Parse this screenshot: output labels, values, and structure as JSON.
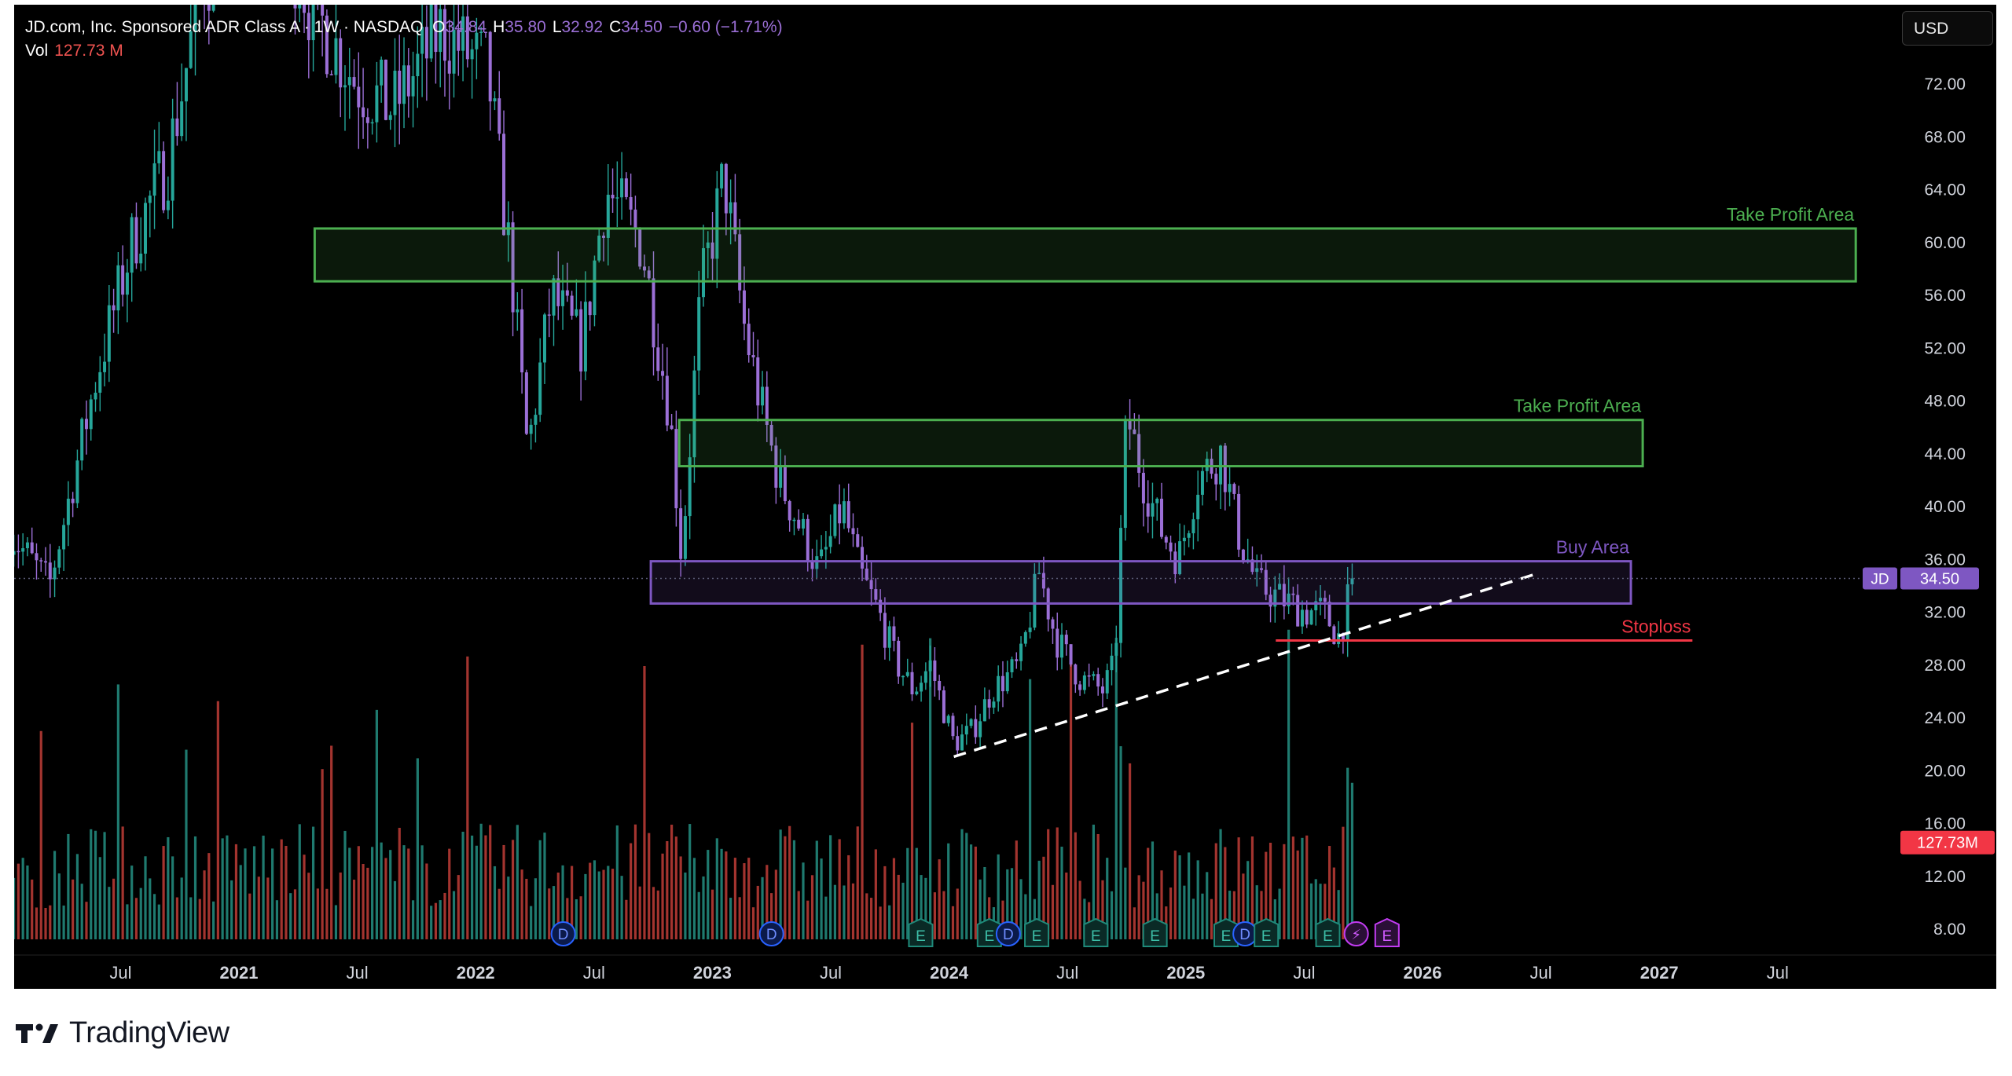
{
  "header": {
    "title": "JD.com, Inc. Sponsored ADR Class A · 1W · NASDAQ",
    "open_label": "O",
    "open": "34.84",
    "high_label": "H",
    "high": "35.80",
    "low_label": "L",
    "low": "32.92",
    "close_label": "C",
    "close": "34.50",
    "change": "−0.60 (−1.71%)",
    "vol_label": "Vol",
    "vol_value": "127.73 M"
  },
  "currency": "USD",
  "brand": {
    "name": "TradingView",
    "icon": "tradingview-logo-icon"
  },
  "colors": {
    "background": "#000000",
    "up": "#26a69a",
    "down": "#9b6fd6",
    "vol_up": "#1f7a6f",
    "vol_down": "#a3342f",
    "take_profit": "#4caf50",
    "buy_area": "#7e57c2",
    "stoploss": "#f23645"
  },
  "chart_data": {
    "type": "candlestick",
    "symbol": "JD",
    "last_price": "34.50",
    "last_volume": "127.73M",
    "price_axis_ticks": [
      "72.00",
      "68.00",
      "64.00",
      "60.00",
      "56.00",
      "52.00",
      "48.00",
      "44.00",
      "40.00",
      "36.00",
      "32.00",
      "28.00",
      "24.00",
      "20.00",
      "16.00",
      "12.00",
      "8.00"
    ],
    "time_axis_ticks": [
      {
        "label": "Jul",
        "date": 2020.5,
        "bold": false
      },
      {
        "label": "2021",
        "date": 2021.0,
        "bold": true
      },
      {
        "label": "Jul",
        "date": 2021.5,
        "bold": false
      },
      {
        "label": "2022",
        "date": 2022.0,
        "bold": true
      },
      {
        "label": "Jul",
        "date": 2022.5,
        "bold": false
      },
      {
        "label": "2023",
        "date": 2023.0,
        "bold": true
      },
      {
        "label": "Jul",
        "date": 2023.5,
        "bold": false
      },
      {
        "label": "2024",
        "date": 2024.0,
        "bold": true
      },
      {
        "label": "Jul",
        "date": 2024.5,
        "bold": false
      },
      {
        "label": "2025",
        "date": 2025.0,
        "bold": true
      },
      {
        "label": "Jul",
        "date": 2025.5,
        "bold": false
      },
      {
        "label": "2026",
        "date": 2026.0,
        "bold": true
      },
      {
        "label": "Jul",
        "date": 2026.5,
        "bold": false
      },
      {
        "label": "2027",
        "date": 2027.0,
        "bold": true
      },
      {
        "label": "Jul",
        "date": 2027.5,
        "bold": false
      }
    ],
    "price_path": [
      [
        2020.03,
        38
      ],
      [
        2020.2,
        34
      ],
      [
        2020.4,
        50
      ],
      [
        2020.55,
        60
      ],
      [
        2020.7,
        66
      ],
      [
        2020.85,
        80
      ],
      [
        2021.1,
        88
      ],
      [
        2021.3,
        78
      ],
      [
        2021.5,
        72
      ],
      [
        2021.65,
        70
      ],
      [
        2021.85,
        76
      ],
      [
        2022.05,
        73
      ],
      [
        2022.15,
        58
      ],
      [
        2022.22,
        44
      ],
      [
        2022.32,
        56
      ],
      [
        2022.45,
        52
      ],
      [
        2022.55,
        64
      ],
      [
        2022.7,
        60
      ],
      [
        2022.82,
        47
      ],
      [
        2022.87,
        36
      ],
      [
        2022.95,
        56
      ],
      [
        2023.05,
        65
      ],
      [
        2023.13,
        54
      ],
      [
        2023.2,
        48
      ],
      [
        2023.28,
        42
      ],
      [
        2023.38,
        38
      ],
      [
        2023.45,
        35
      ],
      [
        2023.55,
        40
      ],
      [
        2023.62,
        35
      ],
      [
        2023.7,
        32
      ],
      [
        2023.78,
        28
      ],
      [
        2023.85,
        26
      ],
      [
        2023.92,
        28
      ],
      [
        2024.02,
        22
      ],
      [
        2024.1,
        23
      ],
      [
        2024.18,
        26
      ],
      [
        2024.3,
        28
      ],
      [
        2024.38,
        35
      ],
      [
        2024.45,
        30
      ],
      [
        2024.55,
        27
      ],
      [
        2024.65,
        26
      ],
      [
        2024.7,
        28
      ],
      [
        2024.75,
        47
      ],
      [
        2024.82,
        42
      ],
      [
        2024.9,
        38
      ],
      [
        2024.97,
        36
      ],
      [
        2025.05,
        42
      ],
      [
        2025.15,
        44
      ],
      [
        2025.22,
        38
      ],
      [
        2025.3,
        34
      ],
      [
        2025.4,
        33
      ],
      [
        2025.5,
        32
      ],
      [
        2025.58,
        32
      ],
      [
        2025.65,
        30
      ],
      [
        2025.7,
        34
      ],
      [
        2025.72,
        34.5
      ]
    ],
    "volume_axis_max_millions": 250,
    "annotations": [
      {
        "type": "rectangle",
        "label": "Take Profit Area",
        "top": 61.0,
        "bottom": 57.0,
        "x_start": 2021.32,
        "x_end": 2027.83
      },
      {
        "type": "rectangle",
        "label": "Take Profit Area",
        "top": 46.5,
        "bottom": 43.0,
        "x_start": 2022.86,
        "x_end": 2026.93
      },
      {
        "type": "rectangle",
        "label": "Buy Area",
        "top": 35.8,
        "bottom": 32.6,
        "x_start": 2022.74,
        "x_end": 2026.88
      },
      {
        "type": "horizontal_segment",
        "label": "Stoploss",
        "price": 29.8,
        "x_start": 2025.38,
        "x_end": 2027.14
      },
      {
        "type": "trendline",
        "style": "dashed",
        "points": [
          [
            2024.02,
            21.0
          ],
          [
            2026.49,
            34.9
          ]
        ]
      }
    ],
    "events": [
      {
        "type": "D",
        "date": 2022.37
      },
      {
        "type": "D",
        "date": 2023.25
      },
      {
        "type": "E",
        "date": 2023.88
      },
      {
        "type": "E",
        "date": 2024.17
      },
      {
        "type": "D",
        "date": 2024.25
      },
      {
        "type": "E",
        "date": 2024.37
      },
      {
        "type": "E",
        "date": 2024.62
      },
      {
        "type": "E",
        "date": 2024.87
      },
      {
        "type": "E",
        "date": 2025.17
      },
      {
        "type": "D",
        "date": 2025.25
      },
      {
        "type": "E",
        "date": 2025.34
      },
      {
        "type": "E",
        "date": 2025.6
      },
      {
        "type": "⚡",
        "date": 2025.72
      },
      {
        "type": "E",
        "date": 2025.85
      }
    ],
    "grid": false
  }
}
